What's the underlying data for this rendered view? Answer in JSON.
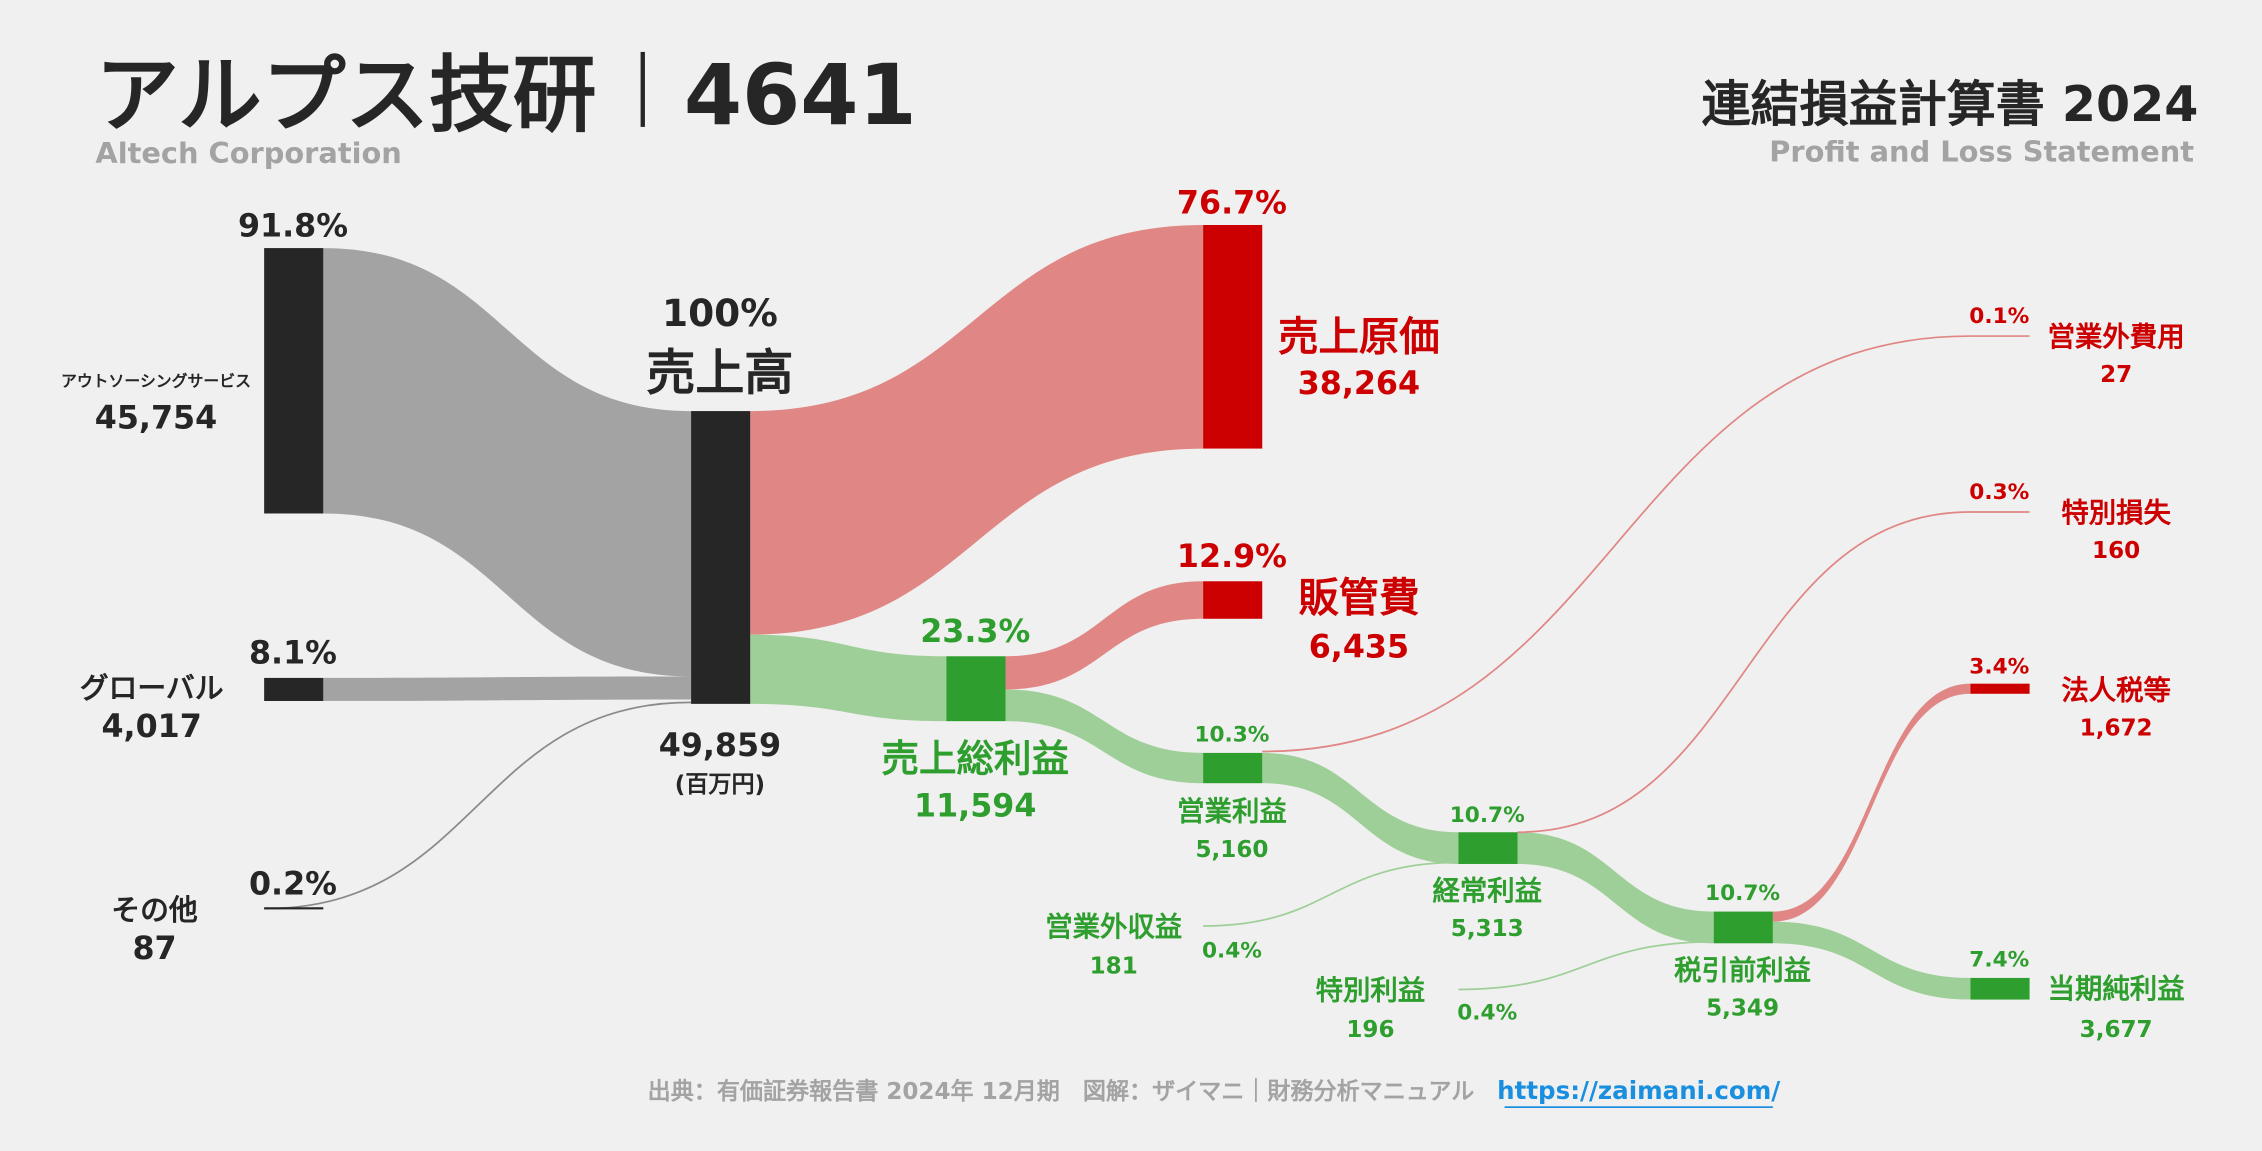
{
  "header": {
    "company": "アルプス技研",
    "separator": "|",
    "code": "4641",
    "company_en": "Altech Corporation",
    "statement": "連結損益計算書 2024",
    "statement_en": "Profit and Loss Statement"
  },
  "colors": {
    "dark": "#262626",
    "red": "#cc0000",
    "green": "#2e9e2e",
    "gray_flow": "#a3a3a3",
    "red_flow": "#e08785",
    "green_flow": "#9fcf98",
    "link": "#1a8fe0"
  },
  "nodes": {
    "outsourcing": {
      "label": "アウトソーシングサービス",
      "value": "45,754",
      "pct": "91.8%"
    },
    "global": {
      "label": "グローバル",
      "value": "4,017",
      "pct": "8.1%"
    },
    "other": {
      "label": "その他",
      "value": "87",
      "pct": "0.2%"
    },
    "revenue": {
      "label": "売上高",
      "value": "49,859",
      "pct": "100%",
      "unit": "(百万円)"
    },
    "cogs": {
      "label": "売上原価",
      "value": "38,264",
      "pct": "76.7%"
    },
    "sga": {
      "label": "販管費",
      "value": "6,435",
      "pct": "12.9%"
    },
    "gross_profit": {
      "label": "売上総利益",
      "value": "11,594",
      "pct": "23.3%"
    },
    "operating_profit": {
      "label": "営業利益",
      "value": "5,160",
      "pct": "10.3%"
    },
    "non_op_expense": {
      "label": "営業外費用",
      "value": "27",
      "pct": "0.1%"
    },
    "non_op_income": {
      "label": "営業外収益",
      "value": "181",
      "pct": "0.4%"
    },
    "ordinary_profit": {
      "label": "経常利益",
      "value": "5,313",
      "pct": "10.7%"
    },
    "extraordinary_loss": {
      "label": "特別損失",
      "value": "160",
      "pct": "0.3%"
    },
    "extraordinary_income": {
      "label": "特別利益",
      "value": "196",
      "pct": "0.4%"
    },
    "pretax_profit": {
      "label": "税引前利益",
      "value": "5,349",
      "pct": "10.7%"
    },
    "income_tax": {
      "label": "法人税等",
      "value": "1,672",
      "pct": "3.4%"
    },
    "net_income": {
      "label": "当期純利益",
      "value": "3,677",
      "pct": "7.4%"
    }
  },
  "footer": {
    "source": "出典：有価証券報告書 2024年 12月期　図解：ザイマニ｜財務分析マニュアル",
    "link": "https://zaimani.com/"
  }
}
